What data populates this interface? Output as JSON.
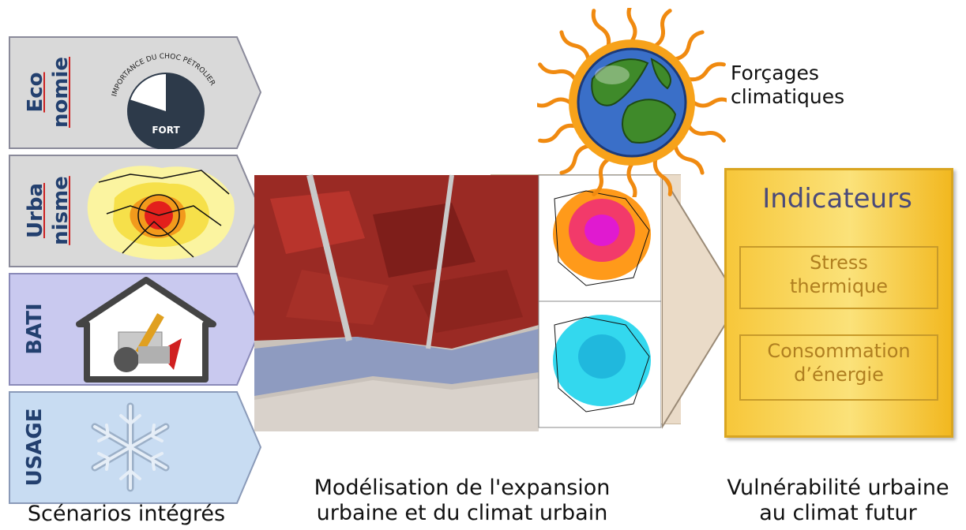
{
  "scenarios": [
    {
      "id": "economie",
      "line1": "Eco",
      "line2": "nomie",
      "fill": "#d9d9d9",
      "stroke": "#8a8a9a"
    },
    {
      "id": "urbanisme",
      "line1": "Urba",
      "line2": "nisme",
      "fill": "#d9d9d9",
      "stroke": "#8a8a9a"
    },
    {
      "id": "bati",
      "line1": "BATI",
      "line2": "",
      "fill": "#c9c9ef",
      "stroke": "#8a8ab8"
    },
    {
      "id": "usage",
      "line1": "USAGE",
      "line2": "",
      "fill": "#c8dcf2",
      "stroke": "#8a9ab8"
    }
  ],
  "economie_gauge": {
    "arc_text": "IMPORTANCE DU CHOC PÉTROLIER",
    "center_text": "FORT",
    "level_fraction": 0.8
  },
  "forcages_label_line1": "Forçages",
  "forcages_label_line2": "climatiques",
  "indicateurs": {
    "title": "Indicateurs",
    "box1_line1": "Stress",
    "box1_line2": "thermique",
    "box2_line1": "Consommation",
    "box2_line2": "d’énergie"
  },
  "captions": {
    "left": "Scénarios intégrés",
    "middle_line1": "Modélisation de l'expansion",
    "middle_line2": "urbaine et du climat urbain",
    "right_line1": "Vulnérabilité urbaine",
    "right_line2": "au climat futur"
  },
  "colors": {
    "label_blue": "#23406f",
    "indicator_gold": "#f4c430",
    "sun_orange": "#f08a10",
    "globe_blue": "#3a6fc8",
    "land_green": "#3f8a2a"
  }
}
